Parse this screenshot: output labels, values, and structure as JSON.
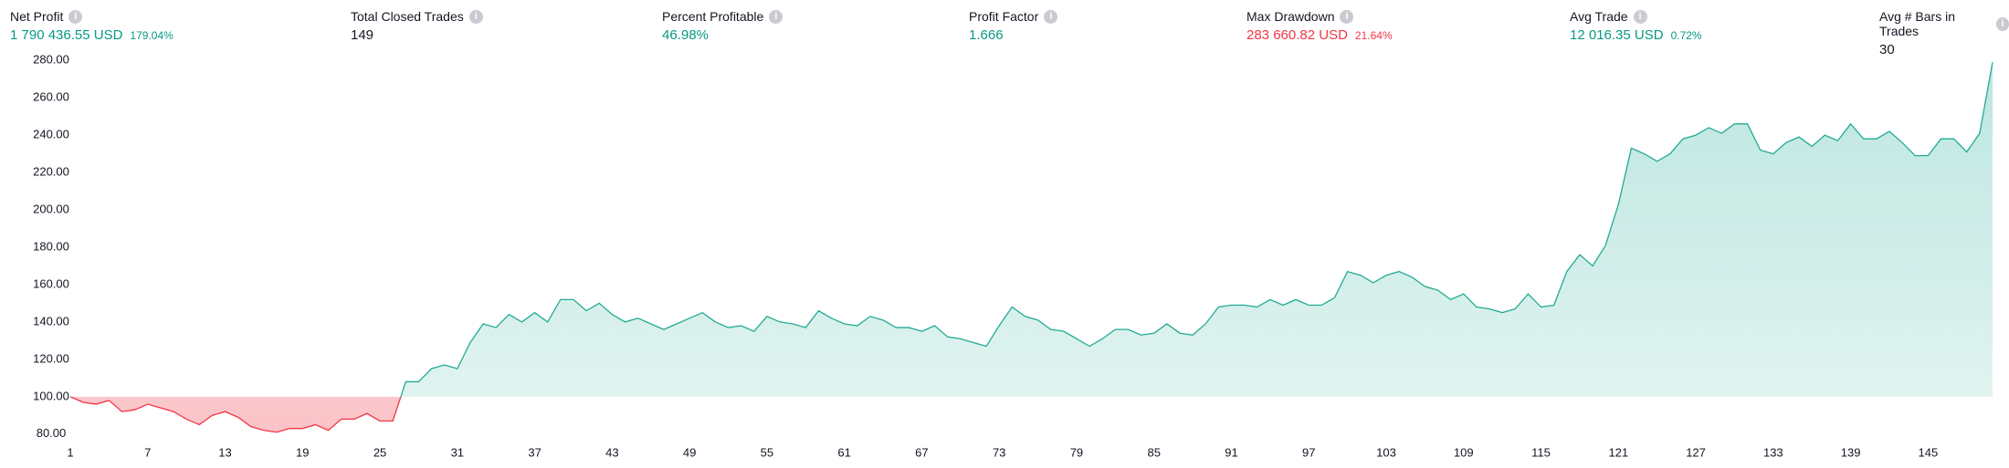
{
  "metrics": [
    {
      "label": "Net Profit",
      "value": "1 790 436.55 USD",
      "sub": "179.04%",
      "tone": "up"
    },
    {
      "label": "Total Closed Trades",
      "value": "149",
      "tone": "neutral"
    },
    {
      "label": "Percent Profitable",
      "value": "46.98%",
      "tone": "up"
    },
    {
      "label": "Profit Factor",
      "value": "1.666",
      "tone": "up"
    },
    {
      "label": "Max Drawdown",
      "value": "283 660.82 USD",
      "sub": "21.64%",
      "tone": "down"
    },
    {
      "label": "Avg Trade",
      "value": "12 016.35 USD",
      "sub": "0.72%",
      "tone": "up"
    },
    {
      "label": "Avg # Bars in Trades",
      "value": "30",
      "tone": "neutral"
    }
  ],
  "chart_data": {
    "type": "area",
    "baseline": 100,
    "up_color": "#22ab94",
    "down_color": "#f23645",
    "x": [
      1,
      2,
      3,
      4,
      5,
      6,
      7,
      8,
      9,
      10,
      11,
      12,
      13,
      14,
      15,
      16,
      17,
      18,
      19,
      20,
      21,
      22,
      23,
      24,
      25,
      26,
      27,
      28,
      29,
      30,
      31,
      32,
      33,
      34,
      35,
      36,
      37,
      38,
      39,
      40,
      41,
      42,
      43,
      44,
      45,
      46,
      47,
      48,
      49,
      50,
      51,
      52,
      53,
      54,
      55,
      56,
      57,
      58,
      59,
      60,
      61,
      62,
      63,
      64,
      65,
      66,
      67,
      68,
      69,
      70,
      71,
      72,
      73,
      74,
      75,
      76,
      77,
      78,
      79,
      80,
      81,
      82,
      83,
      84,
      85,
      86,
      87,
      88,
      89,
      90,
      91,
      92,
      93,
      94,
      95,
      96,
      97,
      98,
      99,
      100,
      101,
      102,
      103,
      104,
      105,
      106,
      107,
      108,
      109,
      110,
      111,
      112,
      113,
      114,
      115,
      116,
      117,
      118,
      119,
      120,
      121,
      122,
      123,
      124,
      125,
      126,
      127,
      128,
      129,
      130,
      131,
      132,
      133,
      134,
      135,
      136,
      137,
      138,
      139,
      140,
      141,
      142,
      143,
      144,
      145,
      146,
      147,
      148,
      149,
      150
    ],
    "series": [
      {
        "values": [
          100,
          97,
          96,
          98,
          92,
          93,
          96,
          94,
          92,
          88,
          85,
          90,
          92,
          89,
          84,
          82,
          81,
          83,
          83,
          85,
          82,
          88,
          88,
          91,
          87,
          87,
          108,
          108,
          115,
          117,
          115,
          129,
          139,
          137,
          144,
          140,
          145,
          140,
          152,
          152,
          146,
          150,
          144,
          140,
          142,
          139,
          136,
          139,
          142,
          145,
          140,
          137,
          138,
          135,
          143,
          140,
          139,
          137,
          146,
          142,
          139,
          138,
          143,
          141,
          137,
          137,
          135,
          138,
          132,
          131,
          129,
          127,
          138,
          148,
          143,
          141,
          136,
          135,
          131,
          127,
          131,
          136,
          136,
          133,
          134,
          139,
          134,
          133,
          139,
          148,
          149,
          149,
          148,
          152,
          149,
          152,
          149,
          149,
          153,
          167,
          165,
          161,
          165,
          167,
          164,
          159,
          157,
          152,
          155,
          148,
          147,
          145,
          147,
          155,
          148,
          149,
          167,
          176,
          170,
          181,
          203,
          233,
          230,
          226,
          230,
          238,
          240,
          244,
          241,
          246,
          246,
          232,
          230,
          236,
          239,
          234,
          240,
          237,
          246,
          238,
          238,
          242,
          236,
          229,
          229,
          238,
          238,
          231,
          241,
          279
        ]
      }
    ],
    "xlim": [
      1,
      150
    ],
    "xticks": [
      1,
      7,
      13,
      19,
      25,
      31,
      37,
      43,
      49,
      55,
      61,
      67,
      73,
      79,
      85,
      91,
      97,
      103,
      109,
      115,
      121,
      127,
      133,
      139,
      145
    ],
    "ylim": [
      76,
      284
    ],
    "yticks": [
      {
        "value": 80,
        "label": "80.00"
      },
      {
        "value": 100,
        "label": "100.00"
      },
      {
        "value": 120,
        "label": "120.00"
      },
      {
        "value": 140,
        "label": "140.00"
      },
      {
        "value": 160,
        "label": "160.00"
      },
      {
        "value": 180,
        "label": "180.00"
      },
      {
        "value": 200,
        "label": "200.00"
      },
      {
        "value": 220,
        "label": "220.00"
      },
      {
        "value": 240,
        "label": "240.00"
      },
      {
        "value": 260,
        "label": "260.00"
      },
      {
        "value": 280,
        "label": "280.00"
      }
    ]
  }
}
